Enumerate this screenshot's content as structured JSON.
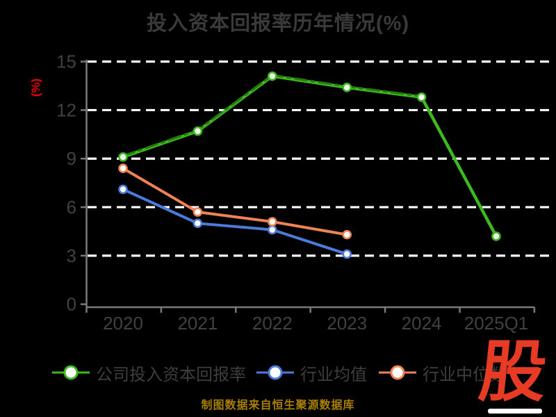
{
  "page": {
    "background": "#000000",
    "source_note": "制图数据来自恒生聚源数据库",
    "source_note_color": "#a97f00",
    "logo_text": "股",
    "logo_color": "#e83b25"
  },
  "chart_data": {
    "type": "line",
    "title": "投入资本回报率历年情况(%)",
    "ylabel": "(%)",
    "ylabel_color": "#ee0000",
    "categories": [
      "2020",
      "2021",
      "2022",
      "2023",
      "2024",
      "2025Q1"
    ],
    "yticks": [
      0,
      3,
      6,
      9,
      12,
      15
    ],
    "ylim": [
      0,
      15
    ],
    "grid": "horizontal-white-dashed",
    "legend_position": "bottom",
    "axis_color": "#7a7a7a",
    "tick_label_color": "#414141",
    "grid_color": "#ffffff",
    "marker_fill": "#ffffff",
    "series": [
      {
        "key": "company-roic",
        "name": "公司投入资本回报率",
        "color": "#3cba1e",
        "values": [
          9.1,
          10.7,
          14.1,
          13.4,
          12.8,
          4.2
        ],
        "style": "solid",
        "in_legend": true
      },
      {
        "key": "company-roic-overlay",
        "name": "",
        "color": "#26790f",
        "values": [
          9.1,
          10.7,
          14.1,
          13.4,
          12.8,
          null
        ],
        "style": "dashed",
        "in_legend": false
      },
      {
        "key": "industry-average",
        "name": "行业均值",
        "color": "#4b7cdb",
        "values": [
          7.1,
          5.0,
          4.6,
          3.1,
          null,
          null
        ],
        "style": "solid",
        "in_legend": true
      },
      {
        "key": "industry-median",
        "name": "行业中位数",
        "color": "#ef8354",
        "values": [
          8.4,
          5.7,
          5.1,
          4.3,
          null,
          null
        ],
        "style": "solid",
        "in_legend": true
      }
    ]
  }
}
